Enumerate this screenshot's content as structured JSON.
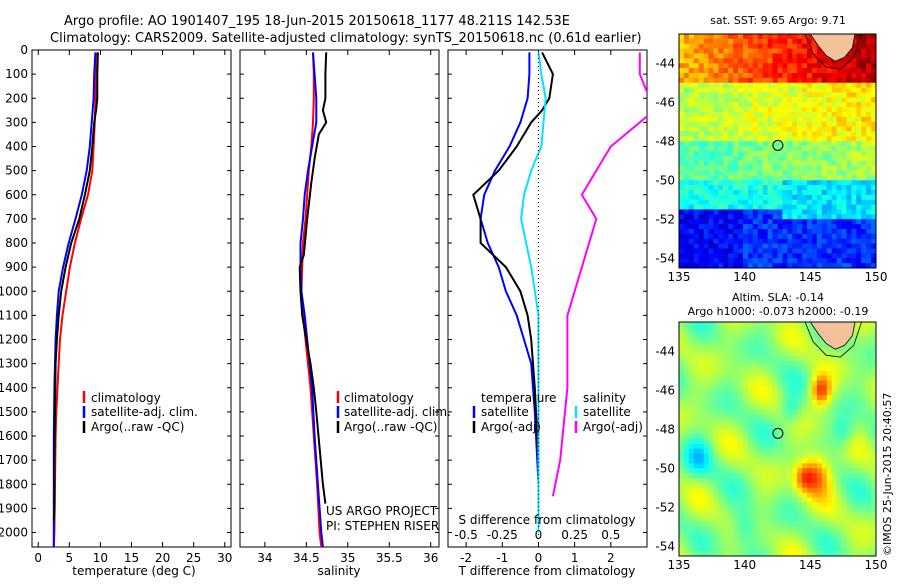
{
  "header": {
    "line1": "Argo profile: AO 1901407_195 18-Jun-2015 20150618_1177 48.211S 142.53E",
    "line2": "Climatology: CARS2009. Satellite-adjusted climatology: synTS_20150618.nc (0.61d earlier)"
  },
  "colors": {
    "climatology": "#ff0000",
    "satellite": "#0000ff",
    "argo": "#000000",
    "satellite_s": "#00e5ff",
    "argo_s": "#ff00ff"
  },
  "chart_data": [
    {
      "type": "line",
      "xlabel": "temperature (deg C)",
      "ylabel": "",
      "xlim": [
        -1,
        31
      ],
      "ylim": [
        2060,
        0
      ],
      "xticks": [
        0,
        5,
        10,
        15,
        20,
        25,
        30
      ],
      "yticks": [
        0,
        100,
        200,
        300,
        400,
        500,
        600,
        700,
        800,
        900,
        1000,
        1100,
        1200,
        1300,
        1400,
        1500,
        1600,
        1700,
        1800,
        1900,
        2000
      ],
      "legend": [
        "climatology",
        "satellite-adj. clim.",
        "Argo(..raw -QC)"
      ],
      "series": [
        {
          "name": "climatology",
          "color": "#ff0000",
          "x": [
            9.3,
            9.2,
            9.2,
            9.1,
            8.9,
            8.7,
            8.0,
            6.9,
            5.9,
            5.1,
            4.5,
            3.9,
            3.5,
            3.3,
            3.1,
            2.9,
            2.8,
            2.7,
            2.6,
            2.5
          ],
          "y": [
            10,
            100,
            200,
            300,
            400,
            500,
            600,
            700,
            800,
            900,
            1000,
            1100,
            1200,
            1300,
            1400,
            1500,
            1600,
            1800,
            2000,
            2060
          ]
        },
        {
          "name": "satellite-adj. clim.",
          "color": "#0000ff",
          "x": [
            9.2,
            9.0,
            8.9,
            8.6,
            8.3,
            7.8,
            7.0,
            6.0,
            4.9,
            4.0,
            3.3,
            3.0,
            2.8,
            2.7,
            2.6,
            2.5,
            2.5,
            2.5,
            2.5
          ],
          "y": [
            10,
            100,
            200,
            300,
            400,
            500,
            600,
            700,
            800,
            900,
            1000,
            1100,
            1200,
            1300,
            1400,
            1600,
            1800,
            2000,
            2060
          ]
        },
        {
          "name": "Argo(..raw -QC)",
          "color": "#000000",
          "x": [
            9.6,
            9.5,
            9.5,
            9.3,
            9.0,
            8.7,
            8.3,
            7.5,
            6.6,
            5.3,
            4.4,
            3.7,
            3.3,
            3.0,
            2.8,
            2.7,
            2.6,
            2.6,
            2.5
          ],
          "y": [
            10,
            100,
            200,
            250,
            300,
            400,
            500,
            600,
            700,
            800,
            900,
            1000,
            1100,
            1200,
            1300,
            1500,
            1700,
            1900,
            1950
          ]
        }
      ]
    },
    {
      "type": "line",
      "xlabel": "salinity",
      "ylabel": "",
      "xlim": [
        33.7,
        36.1
      ],
      "ylim": [
        2060,
        0
      ],
      "xticks": [
        34,
        34.5,
        35,
        35.5,
        36
      ],
      "legend": [
        "climatology",
        "satellite-adj. clim.",
        "Argo(..raw -QC)"
      ],
      "series": [
        {
          "name": "climatology",
          "color": "#ff0000",
          "x": [
            34.58,
            34.59,
            34.59,
            34.58,
            34.56,
            34.53,
            34.51,
            34.49,
            34.46,
            34.45,
            34.44,
            34.46,
            34.49,
            34.52,
            34.55,
            34.59,
            34.63,
            34.66,
            34.68
          ],
          "y": [
            10,
            100,
            200,
            300,
            400,
            500,
            600,
            700,
            800,
            900,
            1000,
            1100,
            1200,
            1300,
            1400,
            1600,
            1800,
            2000,
            2060
          ]
        },
        {
          "name": "satellite-adj. clim.",
          "color": "#0000ff",
          "x": [
            34.58,
            34.6,
            34.62,
            34.62,
            34.57,
            34.52,
            34.48,
            34.46,
            34.43,
            34.43,
            34.44,
            34.48,
            34.51,
            34.54,
            34.57,
            34.6,
            34.64,
            34.68,
            34.7
          ],
          "y": [
            10,
            100,
            200,
            300,
            400,
            500,
            600,
            700,
            800,
            900,
            1000,
            1100,
            1200,
            1300,
            1400,
            1600,
            1800,
            2000,
            2060
          ]
        },
        {
          "name": "Argo(..raw -QC)",
          "color": "#000000",
          "x": [
            34.74,
            34.73,
            34.73,
            34.7,
            34.74,
            34.65,
            34.6,
            34.56,
            34.51,
            34.47,
            34.42,
            34.43,
            34.45,
            34.5,
            34.55,
            34.59,
            34.62,
            34.66,
            34.7,
            34.73
          ],
          "y": [
            10,
            100,
            200,
            250,
            300,
            350,
            450,
            550,
            700,
            850,
            900,
            1000,
            1100,
            1200,
            1300,
            1400,
            1500,
            1650,
            1800,
            1880
          ]
        }
      ]
    },
    {
      "type": "line",
      "xlabel": "T difference from climatology",
      "xlabel2": "S difference from climatology",
      "xlim": [
        -2.5,
        3.0
      ],
      "xticks": [
        -2,
        -1,
        0,
        1,
        2
      ],
      "xticks2_labels": [
        "-0.5",
        "-0.25",
        "0",
        "0.25",
        "0.5"
      ],
      "ylim": [
        2060,
        0
      ],
      "legend": {
        "temperature_title": "temperature",
        "salinity_title": "salinity",
        "items": [
          "satellite",
          "Argo(-adj)",
          "satellite",
          "Argo(-adj)"
        ]
      },
      "series": [
        {
          "name": "satellite",
          "group": "temperature",
          "color": "#0000ff",
          "x": [
            -0.25,
            -0.25,
            -0.3,
            -0.5,
            -0.8,
            -1.2,
            -1.5,
            -1.6,
            -1.4,
            -1.1,
            -0.9,
            -0.6,
            -0.4,
            -0.2,
            -0.1,
            0.0,
            0.0
          ],
          "y": [
            10,
            100,
            200,
            300,
            400,
            500,
            600,
            700,
            800,
            900,
            1000,
            1100,
            1200,
            1300,
            1500,
            1800,
            2000
          ]
        },
        {
          "name": "Argo(-adj)",
          "group": "temperature",
          "color": "#000000",
          "x": [
            0.1,
            0.4,
            0.3,
            0.1,
            -0.2,
            -0.6,
            -1.1,
            -1.8,
            -1.6,
            -1.6,
            -0.9,
            -0.5,
            -0.3,
            -0.2,
            -0.1,
            0.0,
            0.0
          ],
          "y": [
            10,
            100,
            200,
            250,
            300,
            400,
            500,
            600,
            700,
            800,
            900,
            1000,
            1100,
            1200,
            1400,
            1700,
            1950
          ]
        },
        {
          "name": "satellite",
          "group": "salinity",
          "color": "#00e5ff",
          "x": [
            0.0,
            0.02,
            0.05,
            0.02,
            -0.05,
            -0.1,
            -0.12,
            -0.05,
            0.0,
            0.0,
            0.0,
            0.0,
            0.0
          ],
          "y": [
            10,
            100,
            200,
            400,
            500,
            600,
            700,
            900,
            1100,
            1400,
            1700,
            1900,
            2000
          ]
        },
        {
          "name": "Argo(-adj)",
          "group": "salinity",
          "color": "#ff00ff",
          "x": [
            0.7,
            0.7,
            0.8,
            0.7,
            0.5,
            0.4,
            0.3,
            0.4,
            0.3,
            0.2,
            0.2,
            0.15,
            0.1
          ],
          "y": [
            10,
            100,
            250,
            300,
            400,
            500,
            600,
            700,
            900,
            1100,
            1400,
            1700,
            1850
          ]
        }
      ]
    },
    {
      "type": "heatmap",
      "title": "sat. SST: 9.65 Argo: 9.71",
      "xlim": [
        135,
        150
      ],
      "ylim": [
        -54.5,
        -42.5
      ],
      "xticks": [
        135,
        140,
        145,
        150
      ],
      "yticks": [
        -44,
        -46,
        -48,
        -50,
        -52,
        -54
      ],
      "marker": {
        "lon": 142.53,
        "lat": -48.21
      }
    },
    {
      "type": "heatmap",
      "title": "Altim. SLA: -0.14",
      "title2": "Argo h1000: -0.073 h2000: -0.19",
      "xlim": [
        135,
        150
      ],
      "ylim": [
        -54.5,
        -42.5
      ],
      "xticks": [
        135,
        140,
        145,
        150
      ],
      "yticks": [
        -44,
        -46,
        -48,
        -50,
        -52,
        -54
      ],
      "marker": {
        "lon": 142.53,
        "lat": -48.21
      }
    }
  ],
  "text": {
    "project": "US ARGO PROJECT",
    "pi": "PI: STEPHEN RISER",
    "stamp": "©IMOS 25-Jun-2015 20:40:57"
  }
}
